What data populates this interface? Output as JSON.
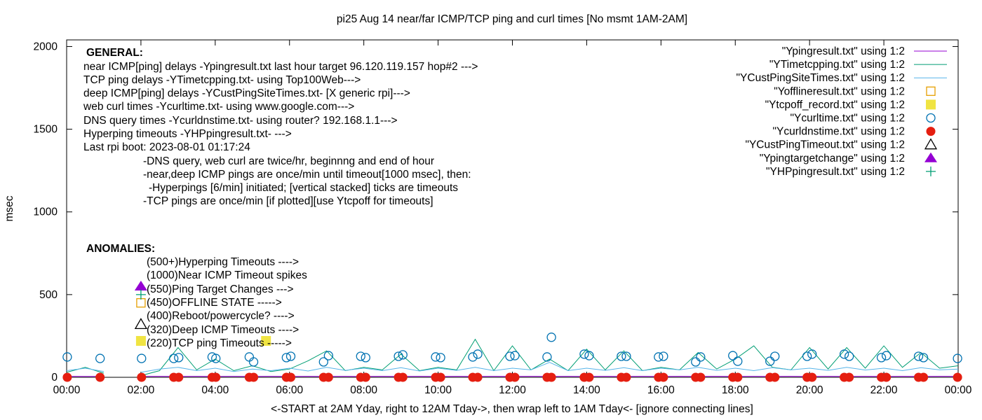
{
  "chart_data": {
    "type": "line",
    "title": "pi25 Aug 14  near/far ICMP/TCP ping and curl times [No msmt 1AM-2AM]",
    "xlabel": "<-START at 2AM Yday, right to 12AM Tday->, then wrap left to 1AM Tday<- [ignore connecting lines]",
    "ylabel": "msec",
    "xlim": [
      "00:00",
      "24:00"
    ],
    "ylim": [
      0,
      2040
    ],
    "x_ticks": [
      "00:00",
      "02:00",
      "04:00",
      "06:00",
      "08:00",
      "10:00",
      "12:00",
      "14:00",
      "16:00",
      "18:00",
      "20:00",
      "22:00",
      "00:00"
    ],
    "y_ticks": [
      0,
      500,
      1000,
      1500,
      2000
    ],
    "grid": false,
    "legend_position": "top-right",
    "line_times": [
      "00:00",
      "00:30",
      "01:00",
      "01:30",
      "02:00",
      "02:30",
      "03:00",
      "03:30",
      "04:00",
      "04:30",
      "05:00",
      "05:30",
      "06:00",
      "06:30",
      "07:00",
      "07:30",
      "08:00",
      "08:30",
      "09:00",
      "09:30",
      "10:00",
      "10:30",
      "11:00",
      "11:30",
      "12:00",
      "12:30",
      "13:00",
      "13:30",
      "14:00",
      "14:30",
      "15:00",
      "15:30",
      "16:00",
      "16:30",
      "17:00",
      "17:30",
      "18:00",
      "18:30",
      "19:00",
      "19:30",
      "20:00",
      "20:30",
      "21:00",
      "21:30",
      "22:00",
      "22:30",
      "23:00",
      "23:30",
      "24:00"
    ],
    "series": [
      {
        "name": "\"Ypingresult.txt\" using 1:2",
        "kind": "line",
        "color": "#9400d3",
        "values": [
          6,
          5,
          6,
          null,
          5,
          6,
          5,
          6,
          5,
          6,
          5,
          6,
          5,
          6,
          5,
          6,
          5,
          6,
          5,
          6,
          5,
          6,
          5,
          6,
          5,
          6,
          5,
          6,
          5,
          6,
          5,
          6,
          5,
          6,
          5,
          6,
          5,
          6,
          5,
          6,
          5,
          6,
          5,
          6,
          5,
          6,
          5,
          6,
          6
        ]
      },
      {
        "name": "\"YTimetcpping.txt\" using 1:2",
        "kind": "line",
        "color": "#009e73",
        "values": [
          30,
          60,
          25,
          null,
          10,
          40,
          180,
          45,
          110,
          40,
          70,
          35,
          50,
          100,
          160,
          40,
          60,
          45,
          140,
          40,
          60,
          45,
          230,
          40,
          190,
          45,
          110,
          40,
          170,
          45,
          160,
          40,
          60,
          45,
          150,
          50,
          110,
          190,
          60,
          45,
          180,
          50,
          180,
          55,
          190,
          60,
          150,
          55,
          70
        ]
      },
      {
        "name": "\"YCustPingSiteTimes.txt\" using 1:2",
        "kind": "line",
        "color": "#56b4e9",
        "values": [
          40,
          55,
          35,
          null,
          30,
          50,
          60,
          40,
          55,
          35,
          50,
          40,
          55,
          38,
          60,
          42,
          55,
          40,
          58,
          38,
          55,
          42,
          60,
          40,
          55,
          45,
          90,
          40,
          55,
          42,
          58,
          40,
          55,
          45,
          60,
          42,
          55,
          40,
          58,
          45,
          55,
          42,
          60,
          44,
          55,
          40,
          58,
          45,
          50
        ]
      },
      {
        "name": "\"Yofflineresult.txt\" using 1:2",
        "kind": "open-square",
        "color": "#e69f00",
        "points": [
          [
            "02:00",
            450
          ]
        ]
      },
      {
        "name": "\"Ytcpoff_record.txt\" using 1:2",
        "kind": "filled-square",
        "color": "#f0e442",
        "points": [
          [
            "02:00",
            220
          ],
          [
            "05:22",
            220
          ]
        ]
      },
      {
        "name": "\"Ycurltime.txt\" using 1:2",
        "kind": "open-circle",
        "color": "#0072b2",
        "points": [
          [
            "00:01",
            123
          ],
          [
            "00:54",
            114
          ],
          [
            "02:01",
            114
          ],
          [
            "02:53",
            114
          ],
          [
            "03:01",
            119
          ],
          [
            "03:55",
            123
          ],
          [
            "04:01",
            114
          ],
          [
            "04:55",
            123
          ],
          [
            "05:02",
            93
          ],
          [
            "05:55",
            119
          ],
          [
            "06:02",
            127
          ],
          [
            "06:55",
            93
          ],
          [
            "07:03",
            131
          ],
          [
            "07:55",
            127
          ],
          [
            "08:03",
            119
          ],
          [
            "08:56",
            127
          ],
          [
            "09:03",
            136
          ],
          [
            "09:56",
            123
          ],
          [
            "10:04",
            119
          ],
          [
            "10:56",
            123
          ],
          [
            "11:04",
            140
          ],
          [
            "11:56",
            127
          ],
          [
            "12:04",
            131
          ],
          [
            "12:56",
            123
          ],
          [
            "13:03",
            242
          ],
          [
            "13:56",
            140
          ],
          [
            "14:04",
            131
          ],
          [
            "14:56",
            127
          ],
          [
            "15:04",
            127
          ],
          [
            "15:56",
            123
          ],
          [
            "16:04",
            127
          ],
          [
            "16:56",
            93
          ],
          [
            "17:04",
            123
          ],
          [
            "17:56",
            131
          ],
          [
            "18:04",
            97
          ],
          [
            "18:56",
            97
          ],
          [
            "19:04",
            127
          ],
          [
            "19:56",
            127
          ],
          [
            "20:04",
            140
          ],
          [
            "20:56",
            140
          ],
          [
            "21:04",
            127
          ],
          [
            "21:56",
            119
          ],
          [
            "22:04",
            131
          ],
          [
            "22:56",
            127
          ],
          [
            "23:04",
            119
          ],
          [
            "23:59",
            114
          ]
        ]
      },
      {
        "name": "\"Ycurldnstime.txt\" using 1:2",
        "kind": "filled-circle",
        "color": "#e51e10",
        "points": [
          [
            "00:01",
            0
          ],
          [
            "00:54",
            0
          ],
          [
            "02:01",
            0
          ],
          [
            "02:53",
            0
          ],
          [
            "03:01",
            0
          ],
          [
            "03:55",
            0
          ],
          [
            "04:01",
            0
          ],
          [
            "04:55",
            0
          ],
          [
            "05:02",
            0
          ],
          [
            "05:55",
            0
          ],
          [
            "06:02",
            0
          ],
          [
            "06:55",
            0
          ],
          [
            "07:03",
            0
          ],
          [
            "07:55",
            0
          ],
          [
            "08:03",
            0
          ],
          [
            "08:56",
            0
          ],
          [
            "09:03",
            0
          ],
          [
            "09:56",
            0
          ],
          [
            "10:04",
            0
          ],
          [
            "10:56",
            0
          ],
          [
            "11:04",
            0
          ],
          [
            "11:56",
            0
          ],
          [
            "12:04",
            0
          ],
          [
            "12:56",
            0
          ],
          [
            "13:03",
            0
          ],
          [
            "13:56",
            0
          ],
          [
            "14:04",
            0
          ],
          [
            "14:56",
            0
          ],
          [
            "15:04",
            0
          ],
          [
            "15:56",
            0
          ],
          [
            "16:04",
            0
          ],
          [
            "16:56",
            0
          ],
          [
            "17:04",
            0
          ],
          [
            "17:56",
            0
          ],
          [
            "18:04",
            0
          ],
          [
            "18:56",
            0
          ],
          [
            "19:04",
            0
          ],
          [
            "19:56",
            0
          ],
          [
            "20:04",
            0
          ],
          [
            "20:56",
            0
          ],
          [
            "21:04",
            0
          ],
          [
            "21:56",
            0
          ],
          [
            "22:04",
            0
          ],
          [
            "22:56",
            0
          ],
          [
            "23:04",
            0
          ],
          [
            "23:59",
            0
          ]
        ]
      },
      {
        "name": "\"YCustPingTimeout.txt\" using 1:2",
        "kind": "open-triangle",
        "color": "#000000",
        "points": [
          [
            "02:00",
            320
          ]
        ]
      },
      {
        "name": "\"Ypingtargetchange\" using 1:2",
        "kind": "filled-triangle",
        "color": "#9400d3",
        "points": [
          [
            "02:00",
            550
          ]
        ]
      },
      {
        "name": "\"YHPpingresult.txt\" using 1:2",
        "kind": "plus",
        "color": "#009e73",
        "points": [
          [
            "02:00",
            500
          ]
        ]
      }
    ],
    "annotations": {
      "general_heading": "GENERAL:",
      "general_lines": [
        "near ICMP[ping] delays -Ypingresult.txt last hour target 96.120.119.157 hop#2 --->",
        "TCP ping delays -YTimetcpping.txt- using Top100Web--->",
        "deep ICMP[ping] delays -YCustPingSiteTimes.txt- [X generic rpi]--->",
        "web curl times -Ycurltime.txt- using www.google.com--->",
        "DNS query times -Ycurldnstime.txt- using router? 192.168.1.1--->",
        "Hyperping timeouts -YHPpingresult.txt- --->",
        "Last rpi boot: 2023-08-01 01:17:24"
      ],
      "notes": [
        "-DNS query, web curl are twice/hr, beginnng and end of hour",
        "-near,deep ICMP pings are once/min until timeout[1000 msec], then:",
        "-Hyperpings [6/min] initiated; [vertical stacked] ticks are timeouts",
        "-TCP pings are once/min [if plotted][use Ytcpoff for timeouts]"
      ],
      "anomalies_heading": "ANOMALIES:",
      "anomalies": [
        "(500+)Hyperping Timeouts ---->",
        "(1000)Near ICMP Timeout spikes",
        "(550)Ping Target Changes --->",
        "(450)OFFLINE STATE ----->",
        "(400)Reboot/powercycle? ---->",
        "(320)Deep ICMP Timeouts ---->",
        "(220)TCP ping Timeouts ----->"
      ]
    }
  }
}
